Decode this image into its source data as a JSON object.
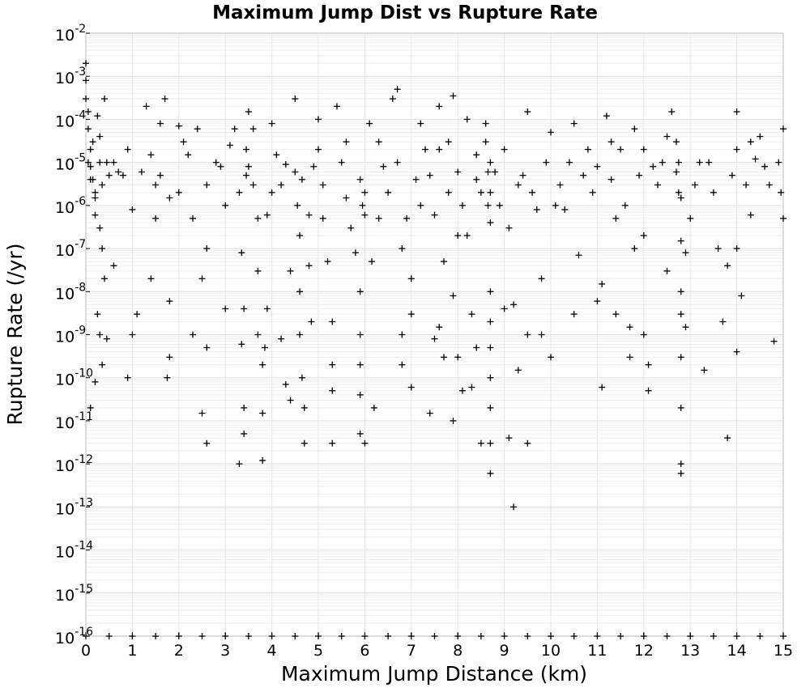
{
  "chart_data": {
    "type": "scatter",
    "title": "Maximum Jump Dist vs Rupture Rate",
    "xlabel": "Maximum Jump Distance (km)",
    "ylabel": "Rupture Rate (/yr)",
    "xlim": [
      0,
      15
    ],
    "ylim": [
      1e-16,
      0.01
    ],
    "y_scale": "log",
    "grid": true,
    "legend": "none",
    "marker": "plus",
    "marker_color": "#000000",
    "x_ticks": [
      "0",
      "1",
      "2",
      "3",
      "4",
      "5",
      "6",
      "7",
      "8",
      "9",
      "10",
      "11",
      "12",
      "13",
      "14",
      "15"
    ],
    "y_ticks": [
      {
        "base": "10",
        "exp": "-16"
      },
      {
        "base": "10",
        "exp": "-15"
      },
      {
        "base": "10",
        "exp": "-14"
      },
      {
        "base": "10",
        "exp": "-13"
      },
      {
        "base": "10",
        "exp": "-12"
      },
      {
        "base": "10",
        "exp": "-11"
      },
      {
        "base": "10",
        "exp": "-10"
      },
      {
        "base": "10",
        "exp": "-9"
      },
      {
        "base": "10",
        "exp": "-8"
      },
      {
        "base": "10",
        "exp": "-7"
      },
      {
        "base": "10",
        "exp": "-6"
      },
      {
        "base": "10",
        "exp": "-5"
      },
      {
        "base": "10",
        "exp": "-4"
      },
      {
        "base": "10",
        "exp": "-3"
      },
      {
        "base": "10",
        "exp": "-2"
      }
    ],
    "points": [
      [
        0.0,
        0.002
      ],
      [
        0.0,
        0.0008
      ],
      [
        0.0,
        0.0003
      ],
      [
        0.05,
        0.00015
      ],
      [
        0.05,
        6e-05
      ],
      [
        0.1,
        2e-05
      ],
      [
        0.1,
        8e-06
      ],
      [
        0.15,
        4e-06
      ],
      [
        0.2,
        1.5e-06
      ],
      [
        0.2,
        6e-07
      ],
      [
        0.25,
        0.00012
      ],
      [
        0.3,
        4e-05
      ],
      [
        0.3,
        1e-05
      ],
      [
        0.35,
        3e-06
      ],
      [
        0.4,
        0.0003
      ],
      [
        0.45,
        1e-05
      ],
      [
        0.5,
        5e-06
      ],
      [
        0.3,
        3e-07
      ],
      [
        0.35,
        1e-07
      ],
      [
        0.4,
        2e-08
      ],
      [
        0.25,
        3e-09
      ],
      [
        0.3,
        1e-09
      ],
      [
        0.35,
        2e-10
      ],
      [
        0.2,
        8e-11
      ],
      [
        0.1,
        2e-11
      ],
      [
        0.45,
        8e-10
      ],
      [
        0.6,
        4e-08
      ],
      [
        0.8,
        5e-06
      ],
      [
        0.9,
        2e-05
      ],
      [
        1.0,
        8e-07
      ],
      [
        1.0,
        1e-09
      ],
      [
        0.9,
        1e-10
      ],
      [
        1.1,
        3e-09
      ],
      [
        1.2,
        6e-06
      ],
      [
        1.3,
        0.0002
      ],
      [
        1.4,
        1.5e-05
      ],
      [
        1.5,
        3e-06
      ],
      [
        1.4,
        2e-08
      ],
      [
        1.5,
        5e-07
      ],
      [
        1.6,
        8e-05
      ],
      [
        1.7,
        0.0003
      ],
      [
        1.8,
        1.5e-06
      ],
      [
        1.8,
        6e-09
      ],
      [
        1.75,
        1e-10
      ],
      [
        1.8,
        3e-10
      ],
      [
        2.0,
        7e-05
      ],
      [
        2.1,
        3e-05
      ],
      [
        2.2,
        1.5e-05
      ],
      [
        2.3,
        5e-07
      ],
      [
        2.3,
        1e-09
      ],
      [
        2.5,
        2e-08
      ],
      [
        2.6,
        3e-06
      ],
      [
        2.6,
        1e-07
      ],
      [
        2.6,
        5e-10
      ],
      [
        2.5,
        1.5e-11
      ],
      [
        2.6,
        3e-12
      ],
      [
        2.8,
        1e-05
      ],
      [
        2.9,
        8e-06
      ],
      [
        3.0,
        4e-09
      ],
      [
        3.1,
        2.5e-05
      ],
      [
        3.2,
        6e-05
      ],
      [
        3.3,
        2e-06
      ],
      [
        3.35,
        8e-08
      ],
      [
        3.4,
        4e-09
      ],
      [
        3.35,
        6e-10
      ],
      [
        3.4,
        2e-11
      ],
      [
        3.3,
        1e-12
      ],
      [
        3.4,
        5e-12
      ],
      [
        3.5,
        0.00015
      ],
      [
        3.5,
        8e-06
      ],
      [
        3.6,
        3e-06
      ],
      [
        3.7,
        5e-07
      ],
      [
        3.7,
        3e-08
      ],
      [
        3.7,
        1e-09
      ],
      [
        3.8,
        2e-10
      ],
      [
        3.8,
        1.5e-11
      ],
      [
        3.8,
        1.2e-12
      ],
      [
        3.85,
        5e-10
      ],
      [
        3.9,
        4e-09
      ],
      [
        3.9,
        6e-07
      ],
      [
        4.0,
        2e-06
      ],
      [
        4.0,
        8e-05
      ],
      [
        4.1,
        1.5e-05
      ],
      [
        4.2,
        3e-06
      ],
      [
        4.2,
        8e-10
      ],
      [
        4.3,
        7e-11
      ],
      [
        4.4,
        3e-08
      ],
      [
        4.4,
        3e-11
      ],
      [
        4.5,
        0.0003
      ],
      [
        4.5,
        6e-06
      ],
      [
        4.55,
        1e-06
      ],
      [
        4.6,
        2e-07
      ],
      [
        4.6,
        1e-08
      ],
      [
        4.6,
        1e-09
      ],
      [
        4.65,
        1e-10
      ],
      [
        4.7,
        2e-11
      ],
      [
        4.7,
        3e-12
      ],
      [
        4.8,
        4e-08
      ],
      [
        4.85,
        2e-09
      ],
      [
        4.9,
        8e-06
      ],
      [
        5.0,
        0.0001
      ],
      [
        5.0,
        2e-05
      ],
      [
        5.1,
        3e-06
      ],
      [
        5.1,
        5e-07
      ],
      [
        5.2,
        5e-08
      ],
      [
        5.3,
        2e-09
      ],
      [
        5.3,
        2e-10
      ],
      [
        5.3,
        5e-11
      ],
      [
        5.3,
        3e-12
      ],
      [
        5.4,
        0.0002
      ],
      [
        5.5,
        1e-05
      ],
      [
        5.6,
        1.5e-06
      ],
      [
        5.7,
        3e-07
      ],
      [
        5.8,
        8e-08
      ],
      [
        5.9,
        4e-06
      ],
      [
        5.9,
        1e-08
      ],
      [
        5.9,
        1e-09
      ],
      [
        5.9,
        2e-10
      ],
      [
        5.9,
        4e-11
      ],
      [
        5.9,
        5e-12
      ],
      [
        6.0,
        2e-06
      ],
      [
        6.0,
        6e-07
      ],
      [
        6.0,
        3e-12
      ],
      [
        6.1,
        8e-05
      ],
      [
        6.15,
        5e-08
      ],
      [
        6.2,
        2e-11
      ],
      [
        6.3,
        3e-05
      ],
      [
        6.4,
        8e-06
      ],
      [
        6.5,
        2e-06
      ],
      [
        6.6,
        0.0003
      ],
      [
        6.7,
        0.0005
      ],
      [
        6.7,
        1e-05
      ],
      [
        6.8,
        1e-07
      ],
      [
        6.8,
        1e-09
      ],
      [
        6.8,
        2e-10
      ],
      [
        6.9,
        5e-07
      ],
      [
        7.0,
        2e-08
      ],
      [
        7.0,
        3e-09
      ],
      [
        7.0,
        6e-11
      ],
      [
        7.1,
        4e-06
      ],
      [
        7.2,
        8e-05
      ],
      [
        7.3,
        2e-05
      ],
      [
        7.4,
        5e-06
      ],
      [
        7.4,
        1.5e-11
      ],
      [
        7.5,
        6e-07
      ],
      [
        7.5,
        8e-10
      ],
      [
        7.6,
        0.0002
      ],
      [
        7.6,
        1.5e-09
      ],
      [
        7.7,
        5e-08
      ],
      [
        7.7,
        3e-10
      ],
      [
        7.8,
        3e-05
      ],
      [
        7.8,
        2e-06
      ],
      [
        7.9,
        0.00035
      ],
      [
        7.9,
        8e-09
      ],
      [
        7.9,
        1e-11
      ],
      [
        8.0,
        6e-06
      ],
      [
        8.0,
        3e-10
      ],
      [
        8.1,
        1e-06
      ],
      [
        8.1,
        5e-11
      ],
      [
        8.2,
        0.0001
      ],
      [
        8.2,
        2e-07
      ],
      [
        8.3,
        3e-09
      ],
      [
        8.3,
        6e-11
      ],
      [
        8.4,
        1.5e-05
      ],
      [
        8.4,
        4e-06
      ],
      [
        8.4,
        5e-10
      ],
      [
        8.5,
        2e-06
      ],
      [
        8.5,
        3e-12
      ],
      [
        8.6,
        8e-05
      ],
      [
        8.6,
        3e-05
      ],
      [
        8.7,
        1e-05
      ],
      [
        8.7,
        2e-06
      ],
      [
        8.7,
        4e-07
      ],
      [
        8.7,
        1e-08
      ],
      [
        8.7,
        2e-09
      ],
      [
        8.7,
        5e-10
      ],
      [
        8.7,
        1e-10
      ],
      [
        8.7,
        2e-11
      ],
      [
        8.7,
        3e-12
      ],
      [
        8.7,
        6e-13
      ],
      [
        8.8,
        6e-06
      ],
      [
        8.9,
        1e-06
      ],
      [
        9.0,
        2e-05
      ],
      [
        9.0,
        4e-09
      ],
      [
        9.1,
        3e-07
      ],
      [
        9.1,
        4e-12
      ],
      [
        9.2,
        1e-13
      ],
      [
        9.2,
        5e-09
      ],
      [
        9.3,
        1.5e-10
      ],
      [
        9.4,
        5e-06
      ],
      [
        9.5,
        0.00015
      ],
      [
        9.5,
        1e-09
      ],
      [
        9.5,
        3e-12
      ],
      [
        9.6,
        2e-06
      ],
      [
        9.7,
        8e-07
      ],
      [
        9.8,
        2e-08
      ],
      [
        9.8,
        1e-09
      ],
      [
        9.9,
        1e-05
      ],
      [
        10.0,
        5e-05
      ],
      [
        10.0,
        3e-10
      ],
      [
        10.2,
        3e-06
      ],
      [
        10.3,
        8e-07
      ],
      [
        10.4,
        1e-05
      ],
      [
        10.5,
        8e-05
      ],
      [
        10.5,
        3e-09
      ],
      [
        10.6,
        7e-08
      ],
      [
        10.7,
        5e-06
      ],
      [
        10.8,
        2e-05
      ],
      [
        10.9,
        2e-06
      ],
      [
        11.0,
        6e-09
      ],
      [
        11.1,
        1.5e-08
      ],
      [
        11.1,
        6e-11
      ],
      [
        11.2,
        0.00012
      ],
      [
        11.3,
        3e-05
      ],
      [
        11.3,
        4e-06
      ],
      [
        11.4,
        5e-07
      ],
      [
        11.4,
        3e-09
      ],
      [
        11.5,
        2e-05
      ],
      [
        11.6,
        1e-06
      ],
      [
        11.7,
        1.5e-09
      ],
      [
        11.7,
        3e-10
      ],
      [
        11.8,
        6e-05
      ],
      [
        11.8,
        1e-07
      ],
      [
        11.9,
        5e-06
      ],
      [
        12.0,
        2e-05
      ],
      [
        12.0,
        2e-07
      ],
      [
        12.0,
        1e-09
      ],
      [
        12.1,
        2e-10
      ],
      [
        12.1,
        5e-11
      ],
      [
        12.2,
        8e-06
      ],
      [
        12.3,
        3e-06
      ],
      [
        12.4,
        1e-05
      ],
      [
        12.5,
        3e-08
      ],
      [
        12.6,
        0.00015
      ],
      [
        12.7,
        3e-05
      ],
      [
        12.7,
        6e-06
      ],
      [
        12.8,
        1.5e-06
      ],
      [
        12.8,
        1.5e-07
      ],
      [
        12.8,
        1e-08
      ],
      [
        12.8,
        3e-09
      ],
      [
        12.8,
        3e-10
      ],
      [
        12.8,
        2e-11
      ],
      [
        12.8,
        1e-12
      ],
      [
        12.8,
        6e-13
      ],
      [
        12.9,
        8e-08
      ],
      [
        12.9,
        1.5e-09
      ],
      [
        13.0,
        5e-07
      ],
      [
        13.1,
        3e-06
      ],
      [
        13.3,
        1.5e-10
      ],
      [
        13.4,
        1e-05
      ],
      [
        13.5,
        2e-06
      ],
      [
        13.6,
        1e-07
      ],
      [
        13.7,
        2e-09
      ],
      [
        13.8,
        4e-12
      ],
      [
        13.8,
        4e-08
      ],
      [
        13.9,
        5e-06
      ],
      [
        14.0,
        0.00015
      ],
      [
        14.0,
        2e-05
      ],
      [
        14.0,
        1e-07
      ],
      [
        14.0,
        4e-10
      ],
      [
        14.1,
        8e-09
      ],
      [
        14.2,
        3e-06
      ],
      [
        14.3,
        6e-07
      ],
      [
        14.4,
        1.2e-05
      ],
      [
        14.5,
        4e-05
      ],
      [
        14.6,
        8e-06
      ],
      [
        14.7,
        3e-06
      ],
      [
        14.8,
        7e-10
      ],
      [
        14.9,
        1e-05
      ],
      [
        15.0,
        6e-05
      ],
      [
        15.0,
        5e-07
      ],
      [
        14.95,
        2e-06
      ],
      [
        0.6,
        1e-05
      ],
      [
        0.7,
        6e-06
      ],
      [
        1.6,
        5e-06
      ],
      [
        2.0,
        2e-06
      ],
      [
        2.4,
        6e-05
      ],
      [
        3.0,
        1e-06
      ],
      [
        3.6,
        6e-05
      ],
      [
        4.3,
        9e-06
      ],
      [
        4.8,
        6e-07
      ],
      [
        5.6,
        3e-05
      ],
      [
        6.3,
        5e-07
      ],
      [
        7.2,
        1e-06
      ],
      [
        7.6,
        2e-05
      ],
      [
        8.0,
        2e-07
      ],
      [
        9.3,
        3e-06
      ],
      [
        10.1,
        1e-06
      ],
      [
        11.0,
        8e-06
      ],
      [
        12.5,
        4e-05
      ],
      [
        13.2,
        1e-05
      ],
      [
        14.3,
        3e-05
      ],
      [
        0.15,
        3e-05
      ],
      [
        0.05,
        1e-05
      ],
      [
        0.1,
        4e-06
      ],
      [
        0.2,
        2e-06
      ],
      [
        3.45,
        2e-05
      ],
      [
        3.45,
        5e-06
      ],
      [
        4.65,
        4e-06
      ],
      [
        5.95,
        1e-06
      ],
      [
        8.65,
        6e-06
      ],
      [
        8.65,
        1e-06
      ],
      [
        12.75,
        1e-05
      ],
      [
        12.75,
        2e-06
      ],
      [
        0.0,
        1e-16
      ],
      [
        0.5,
        1e-16
      ],
      [
        1.0,
        1e-16
      ],
      [
        1.5,
        1e-16
      ],
      [
        2.0,
        1e-16
      ],
      [
        2.5,
        1e-16
      ],
      [
        3.0,
        1e-16
      ],
      [
        3.5,
        1e-16
      ],
      [
        4.0,
        1e-16
      ],
      [
        4.5,
        1e-16
      ],
      [
        5.0,
        1e-16
      ],
      [
        5.5,
        1e-16
      ],
      [
        6.0,
        1e-16
      ],
      [
        6.5,
        1e-16
      ],
      [
        7.0,
        1e-16
      ],
      [
        7.5,
        1e-16
      ],
      [
        8.0,
        1e-16
      ],
      [
        8.5,
        1e-16
      ],
      [
        9.0,
        1e-16
      ],
      [
        9.5,
        1e-16
      ],
      [
        10.0,
        1e-16
      ],
      [
        10.5,
        1e-16
      ],
      [
        11.0,
        1e-16
      ],
      [
        11.5,
        1e-16
      ],
      [
        12.0,
        1e-16
      ],
      [
        12.5,
        1e-16
      ],
      [
        13.0,
        1e-16
      ],
      [
        13.5,
        1e-16
      ],
      [
        14.0,
        1e-16
      ],
      [
        14.5,
        1e-16
      ],
      [
        15.0,
        1e-16
      ]
    ]
  }
}
